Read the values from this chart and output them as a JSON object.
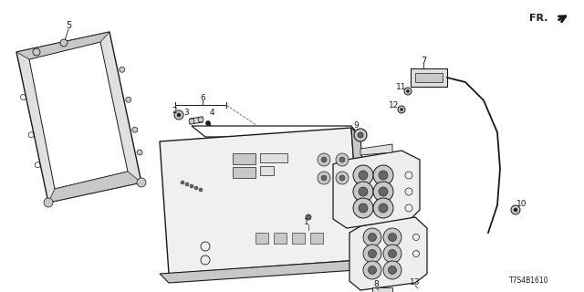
{
  "bg_color": "#ffffff",
  "diagram_code": "T7S4B1610",
  "fr_label": "FR.",
  "gray": "#1a1a1a",
  "lgray": "#666666",
  "fill_light": "#e0e0e0",
  "fill_mid": "#c8c8c8",
  "fill_dark": "#999999"
}
